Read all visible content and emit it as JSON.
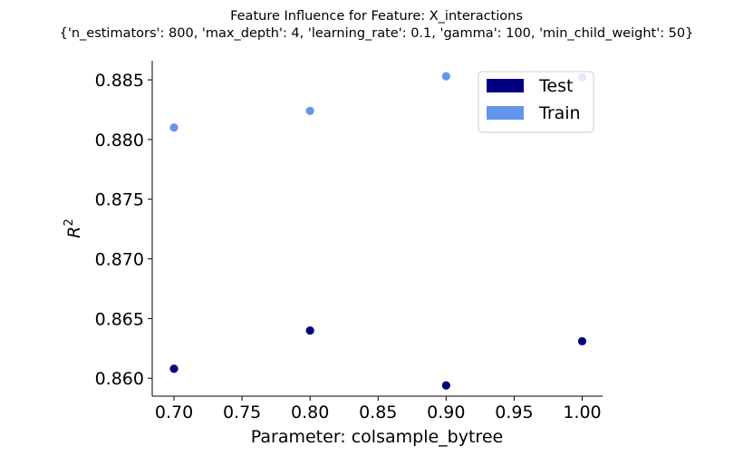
{
  "chart_data": {
    "type": "scatter",
    "title_line1": "Feature Influence for Feature: X_interactions",
    "title_line2": "{'n_estimators': 800, 'max_depth': 4, 'learning_rate': 0.1, 'gamma': 100, 'min_child_weight': 50}",
    "xlabel": "Parameter: colsample_bytree",
    "ylabel_base": "R",
    "ylabel_sup": "2",
    "xlim": [
      0.684,
      1.015
    ],
    "ylim": [
      0.8585,
      0.8866
    ],
    "x_ticks": [
      0.7,
      0.75,
      0.8,
      0.85,
      0.9,
      0.95,
      1.0
    ],
    "x_tick_labels": [
      "0.70",
      "0.75",
      "0.80",
      "0.85",
      "0.90",
      "0.95",
      "1.00"
    ],
    "y_ticks": [
      0.86,
      0.865,
      0.87,
      0.875,
      0.88,
      0.885
    ],
    "y_tick_labels": [
      "0.860",
      "0.865",
      "0.870",
      "0.875",
      "0.880",
      "0.885"
    ],
    "legend_position": "top-right",
    "series": [
      {
        "name": "Test",
        "color": "#000080",
        "x": [
          0.7,
          0.8,
          0.9,
          1.0
        ],
        "y": [
          0.8608,
          0.864,
          0.8594,
          0.8631
        ]
      },
      {
        "name": "Train",
        "color": "#6495ed",
        "x": [
          0.7,
          0.8,
          0.9,
          1.0
        ],
        "y": [
          0.881,
          0.8824,
          0.8853,
          0.8852
        ]
      }
    ]
  }
}
